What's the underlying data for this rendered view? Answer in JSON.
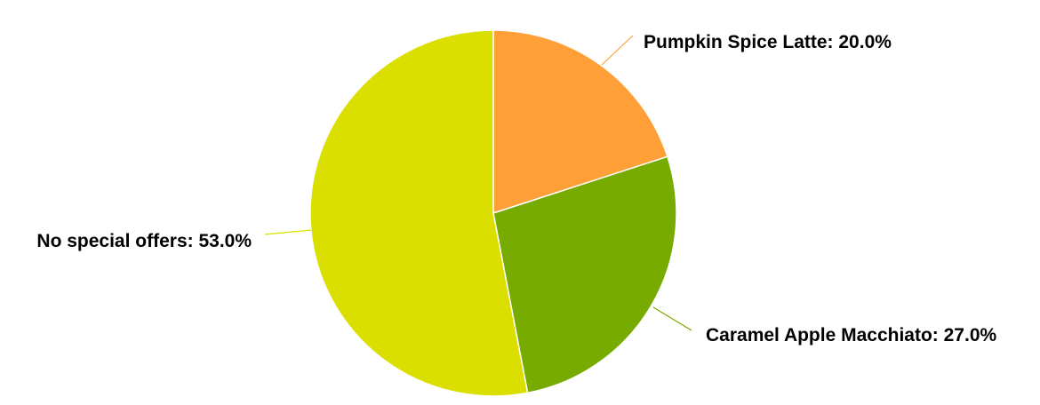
{
  "chart_data": {
    "type": "pie",
    "title": "",
    "slices": [
      {
        "label": "Pumpkin Spice Latte",
        "value": 20.0,
        "display": "Pumpkin Spice Latte: 20.0%",
        "color": "#ff9f38"
      },
      {
        "label": "Caramel Apple Macchiato",
        "value": 27.0,
        "display": "Caramel Apple Macchiato: 27.0%",
        "color": "#77ab00"
      },
      {
        "label": "No special offers",
        "value": 53.0,
        "display": "No special offers: 53.0%",
        "color": "#dbdf00"
      }
    ],
    "start_angle_deg": 0,
    "direction": "clockwise",
    "legend": "none",
    "slice_border_color": "#ffffff"
  }
}
